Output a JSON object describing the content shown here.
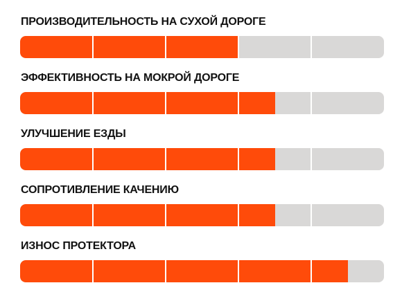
{
  "colors": {
    "fill": "#ff4b0a",
    "track": "#d9d8d7",
    "divider": "#ffffff",
    "text": "#111111"
  },
  "ratings": [
    {
      "label": "ПРОИЗВОДИТЕЛЬНОСТЬ НА СУХОЙ ДОРОГЕ",
      "level": 0.6,
      "segments": 5
    },
    {
      "label": "ЭФФЕКТИВНОСТЬ НА МОКРОЙ ДОРОГЕ",
      "level": 0.7,
      "segments": 5
    },
    {
      "label": "УЛУЧШЕНИЕ ЕЗДЫ",
      "level": 0.7,
      "segments": 5
    },
    {
      "label": "СОПРОТИВЛЕНИЕ КАЧЕНИЮ",
      "level": 0.7,
      "segments": 5
    },
    {
      "label": "ИЗНОС ПРОТЕКТОРА",
      "level": 0.9,
      "segments": 5
    }
  ]
}
